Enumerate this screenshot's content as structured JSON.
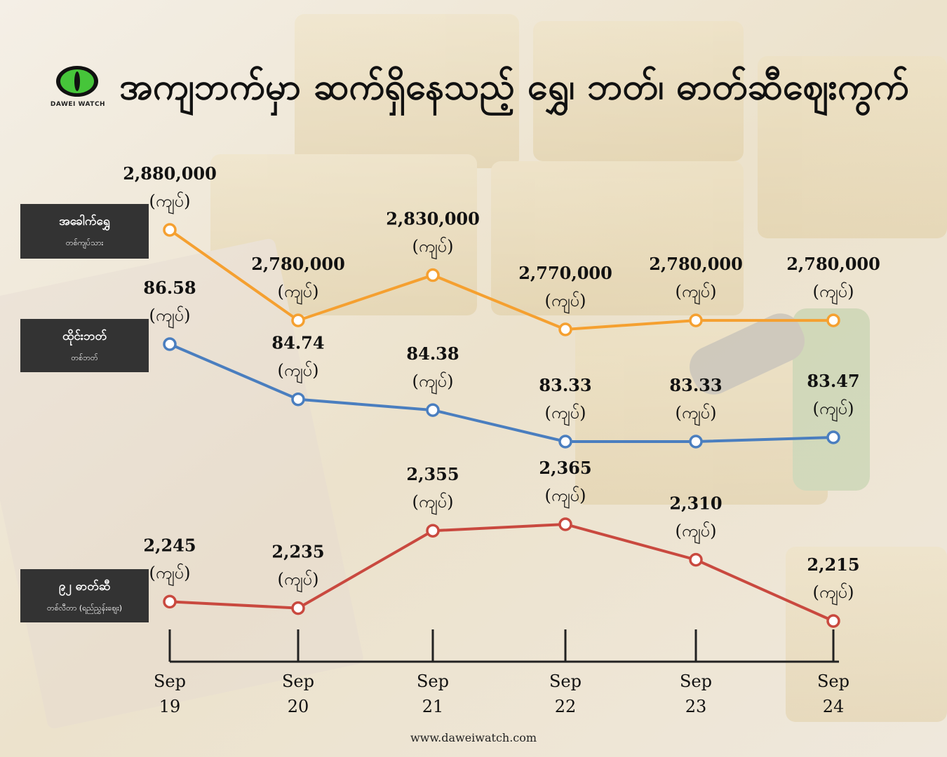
{
  "header": {
    "title": "အကျဘက်မှာ ဆက်ရှိနေသည့် ရွှေ၊ ဘတ်၊ ဓာတ်ဆီဈေးကွက်",
    "logo_text": "DAWEI WATCH"
  },
  "footer": {
    "url": "www.daweiwatch.com"
  },
  "colors": {
    "gold": "#f5a030",
    "baht": "#4a7ebf",
    "fuel": "#c9493f",
    "legend_bg": "#333333"
  },
  "chart_data": {
    "type": "line",
    "x": [
      {
        "month": "Sep",
        "day": "19"
      },
      {
        "month": "Sep",
        "day": "20"
      },
      {
        "month": "Sep",
        "day": "21"
      },
      {
        "month": "Sep",
        "day": "22"
      },
      {
        "month": "Sep",
        "day": "23"
      },
      {
        "month": "Sep",
        "day": "24"
      }
    ],
    "series": [
      {
        "key": "gold",
        "name": "အခေါက်ရွှေ",
        "unit_label": "တစ်ကျပ်သား",
        "color": "#f5a030",
        "values": [
          2880000,
          2780000,
          2830000,
          2770000,
          2780000,
          2780000
        ],
        "labels": [
          "2,880,000",
          "2,780,000",
          "2,830,000",
          "2,770,000",
          "2,780,000",
          "2,780,000"
        ],
        "currency": "(ကျပ်)"
      },
      {
        "key": "baht",
        "name": "ထိုင်းဘတ်",
        "unit_label": "တစ်ဘတ်",
        "color": "#4a7ebf",
        "values": [
          86.58,
          84.74,
          84.38,
          83.33,
          83.33,
          83.47
        ],
        "labels": [
          "86.58",
          "84.74",
          "84.38",
          "83.33",
          "83.33",
          "83.47"
        ],
        "currency": "(ကျပ်)"
      },
      {
        "key": "fuel",
        "name": "၉၂ ဓာတ်ဆီ",
        "unit_label": "တစ်လီတာ (ရည်ညွှန်းဈေး)",
        "color": "#c9493f",
        "values": [
          2245,
          2235,
          2355,
          2365,
          2310,
          2215
        ],
        "labels": [
          "2,245",
          "2,235",
          "2,355",
          "2,365",
          "2,310",
          "2,215"
        ],
        "currency": "(ကျပ်)"
      }
    ]
  }
}
